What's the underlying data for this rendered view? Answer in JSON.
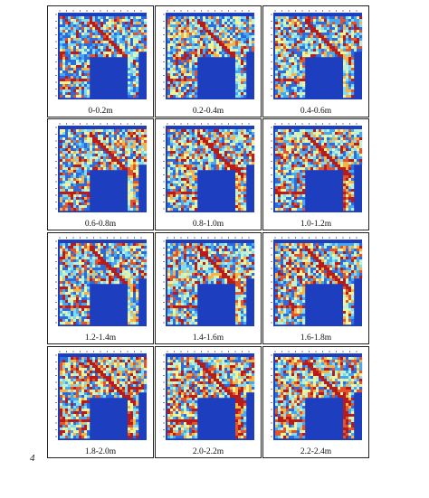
{
  "panels": [
    {
      "label": "0-0.2m"
    },
    {
      "label": "0.2-0.4m"
    },
    {
      "label": "0.4-0.6m"
    },
    {
      "label": "0.6-0.8m"
    },
    {
      "label": "0.8-1.0m"
    },
    {
      "label": "1.0-1.2m"
    },
    {
      "label": "1.2-1.4m"
    },
    {
      "label": "1.4-1.6m"
    },
    {
      "label": "1.6-1.8m"
    },
    {
      "label": "1.8-2.0m"
    },
    {
      "label": "2.0-2.2m"
    },
    {
      "label": "2.2-2.4m"
    }
  ],
  "page_number": "4",
  "colors": {
    "background_blue": "#1d3fbf",
    "scale": [
      "#2b6be0",
      "#47a7f0",
      "#7fdcf2",
      "#bff2d0",
      "#f3f39a",
      "#f4b44a",
      "#e2552c",
      "#b81b1b"
    ]
  }
}
